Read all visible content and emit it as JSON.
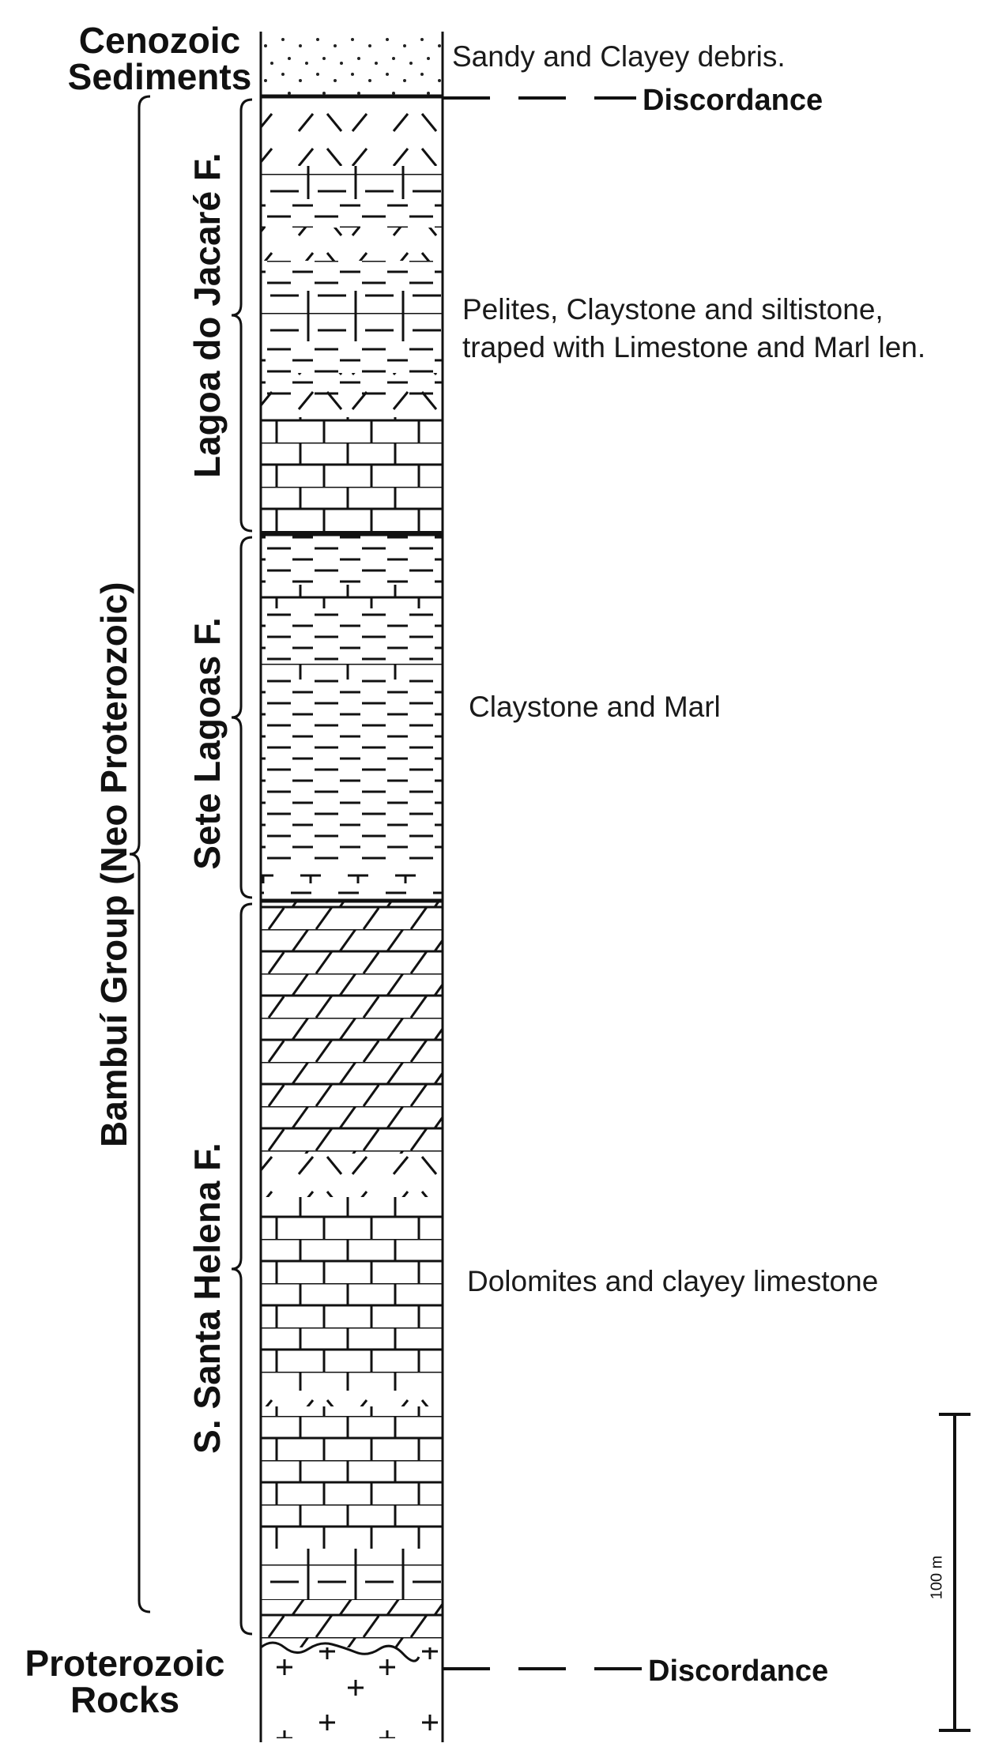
{
  "labels": {
    "top_era": "Cenozoic\nSediments",
    "bottom_era": "Proterozoic\nRocks",
    "discordance_top": "Discordance",
    "discordance_bottom": "Discordance",
    "group": "Bambuí Group (Neo Proterozoic)",
    "formation_1": "Lagoa do Jacaré F.",
    "formation_2": "Sete Lagoas F.",
    "formation_3": "S. Santa Helena F.",
    "desc_cenozoic": "Sandy and Clayey debris.",
    "desc_lagoa": "Pelites, Claystone and siltistone,\ntraped with Limestone and Marl len.",
    "desc_sete": "Claystone and Marl",
    "desc_santa": "Dolomites and clayey limestone",
    "scale": "100 m"
  },
  "layers": [
    {
      "unit": "cenozoic",
      "pattern": "sand"
    },
    {
      "unit": "lagoa",
      "pattern": "marl-slash"
    },
    {
      "unit": "lagoa",
      "pattern": "limestone-dash"
    },
    {
      "unit": "lagoa",
      "pattern": "dash"
    },
    {
      "unit": "lagoa",
      "pattern": "marl-slash"
    },
    {
      "unit": "lagoa",
      "pattern": "dash"
    },
    {
      "unit": "lagoa",
      "pattern": "limestone-dash"
    },
    {
      "unit": "lagoa",
      "pattern": "dash"
    },
    {
      "unit": "lagoa",
      "pattern": "marl-slash"
    },
    {
      "unit": "lagoa",
      "pattern": "limestone"
    },
    {
      "unit": "lagoa",
      "pattern": "dash"
    },
    {
      "unit": "lagoa",
      "pattern": "limestone"
    },
    {
      "unit": "sete",
      "pattern": "dash"
    },
    {
      "unit": "sete",
      "pattern": "limestone"
    },
    {
      "unit": "sete",
      "pattern": "dash"
    },
    {
      "unit": "sete",
      "pattern": "limestone"
    },
    {
      "unit": "sete",
      "pattern": "dash"
    },
    {
      "unit": "sete",
      "pattern": "marl-plus"
    },
    {
      "unit": "santa",
      "pattern": "dolomite"
    },
    {
      "unit": "santa",
      "pattern": "marl-slash"
    },
    {
      "unit": "santa",
      "pattern": "limestone"
    },
    {
      "unit": "santa",
      "pattern": "marl-slash"
    },
    {
      "unit": "santa",
      "pattern": "limestone"
    },
    {
      "unit": "santa",
      "pattern": "limestone-dash"
    },
    {
      "unit": "santa",
      "pattern": "dolomite"
    },
    {
      "unit": "basement",
      "pattern": "crystalline"
    }
  ]
}
